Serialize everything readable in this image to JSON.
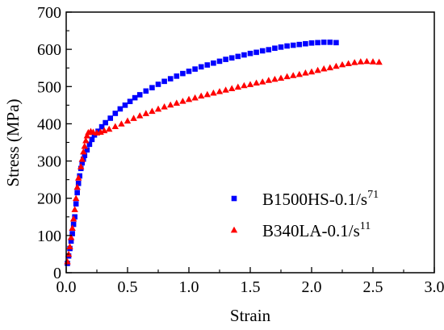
{
  "chart_data": {
    "type": "scatter",
    "xlabel": "Strain",
    "ylabel": "Stress (MPa)",
    "xlim": [
      0.0,
      3.0
    ],
    "ylim": [
      0,
      700
    ],
    "x_ticks": [
      "0.0",
      "0.5",
      "1.0",
      "1.5",
      "2.0",
      "2.5",
      "3.0"
    ],
    "y_ticks": [
      "0",
      "100",
      "200",
      "300",
      "400",
      "500",
      "600",
      "700"
    ],
    "grid": false,
    "legend_position": "center-right",
    "series": [
      {
        "name": "B1500HS-0.1/s",
        "name_superscript": "71",
        "marker": "square",
        "color": "#0000ff",
        "points": [
          [
            0.01,
            25
          ],
          [
            0.02,
            45
          ],
          [
            0.03,
            65
          ],
          [
            0.04,
            85
          ],
          [
            0.05,
            105
          ],
          [
            0.06,
            130
          ],
          [
            0.07,
            150
          ],
          [
            0.08,
            185
          ],
          [
            0.09,
            215
          ],
          [
            0.1,
            240
          ],
          [
            0.11,
            260
          ],
          [
            0.12,
            280
          ],
          [
            0.13,
            295
          ],
          [
            0.14,
            305
          ],
          [
            0.15,
            315
          ],
          [
            0.17,
            330
          ],
          [
            0.19,
            345
          ],
          [
            0.21,
            358
          ],
          [
            0.23,
            370
          ],
          [
            0.26,
            380
          ],
          [
            0.29,
            392
          ],
          [
            0.32,
            403
          ],
          [
            0.36,
            415
          ],
          [
            0.4,
            428
          ],
          [
            0.44,
            440
          ],
          [
            0.48,
            450
          ],
          [
            0.52,
            460
          ],
          [
            0.56,
            470
          ],
          [
            0.6,
            478
          ],
          [
            0.65,
            488
          ],
          [
            0.7,
            497
          ],
          [
            0.75,
            506
          ],
          [
            0.8,
            514
          ],
          [
            0.85,
            521
          ],
          [
            0.9,
            528
          ],
          [
            0.95,
            535
          ],
          [
            1.0,
            541
          ],
          [
            1.05,
            547
          ],
          [
            1.1,
            553
          ],
          [
            1.15,
            558
          ],
          [
            1.2,
            563
          ],
          [
            1.25,
            568
          ],
          [
            1.3,
            573
          ],
          [
            1.35,
            577
          ],
          [
            1.4,
            581
          ],
          [
            1.45,
            585
          ],
          [
            1.5,
            589
          ],
          [
            1.55,
            592
          ],
          [
            1.6,
            596
          ],
          [
            1.65,
            599
          ],
          [
            1.7,
            603
          ],
          [
            1.75,
            606
          ],
          [
            1.8,
            609
          ],
          [
            1.85,
            611
          ],
          [
            1.9,
            613
          ],
          [
            1.95,
            615
          ],
          [
            2.0,
            617
          ],
          [
            2.05,
            618
          ],
          [
            2.1,
            619
          ],
          [
            2.15,
            619
          ],
          [
            2.2,
            618
          ]
        ]
      },
      {
        "name": "B340LA-0.1/s",
        "name_superscript": "11",
        "marker": "triangle",
        "color": "#ff0000",
        "points": [
          [
            0.01,
            30
          ],
          [
            0.02,
            50
          ],
          [
            0.03,
            70
          ],
          [
            0.04,
            95
          ],
          [
            0.05,
            120
          ],
          [
            0.06,
            145
          ],
          [
            0.07,
            170
          ],
          [
            0.08,
            200
          ],
          [
            0.09,
            230
          ],
          [
            0.1,
            255
          ],
          [
            0.12,
            285
          ],
          [
            0.13,
            305
          ],
          [
            0.14,
            325
          ],
          [
            0.15,
            340
          ],
          [
            0.16,
            355
          ],
          [
            0.17,
            368
          ],
          [
            0.18,
            377
          ],
          [
            0.2,
            380
          ],
          [
            0.22,
            378
          ],
          [
            0.25,
            376
          ],
          [
            0.28,
            378
          ],
          [
            0.31,
            382
          ],
          [
            0.35,
            386
          ],
          [
            0.4,
            393
          ],
          [
            0.45,
            400
          ],
          [
            0.5,
            408
          ],
          [
            0.55,
            415
          ],
          [
            0.6,
            422
          ],
          [
            0.65,
            428
          ],
          [
            0.7,
            434
          ],
          [
            0.75,
            440
          ],
          [
            0.8,
            446
          ],
          [
            0.85,
            451
          ],
          [
            0.9,
            456
          ],
          [
            0.95,
            461
          ],
          [
            1.0,
            466
          ],
          [
            1.05,
            470
          ],
          [
            1.1,
            475
          ],
          [
            1.15,
            479
          ],
          [
            1.2,
            483
          ],
          [
            1.25,
            487
          ],
          [
            1.3,
            491
          ],
          [
            1.35,
            495
          ],
          [
            1.4,
            499
          ],
          [
            1.45,
            503
          ],
          [
            1.5,
            506
          ],
          [
            1.55,
            510
          ],
          [
            1.6,
            513
          ],
          [
            1.65,
            517
          ],
          [
            1.7,
            520
          ],
          [
            1.75,
            523
          ],
          [
            1.8,
            527
          ],
          [
            1.85,
            530
          ],
          [
            1.9,
            533
          ],
          [
            1.95,
            537
          ],
          [
            2.0,
            540
          ],
          [
            2.05,
            544
          ],
          [
            2.1,
            548
          ],
          [
            2.15,
            551
          ],
          [
            2.2,
            555
          ],
          [
            2.25,
            559
          ],
          [
            2.3,
            562
          ],
          [
            2.35,
            565
          ],
          [
            2.4,
            567
          ],
          [
            2.45,
            568
          ],
          [
            2.5,
            567
          ],
          [
            2.55,
            566
          ]
        ]
      }
    ]
  }
}
